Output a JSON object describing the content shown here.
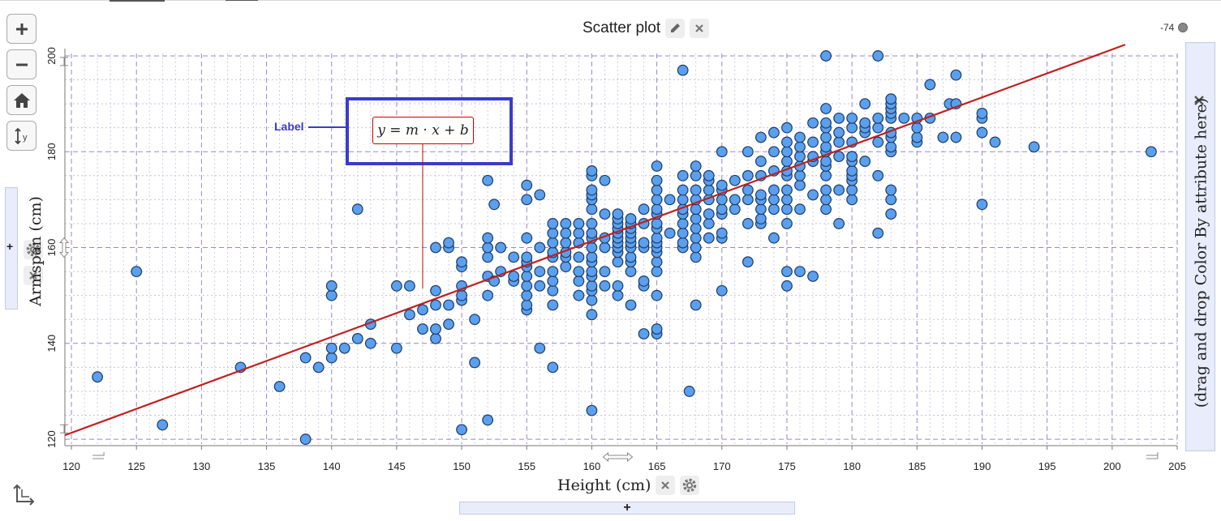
{
  "graph": {
    "title": "Scatter plot",
    "counter_label": "-74",
    "right_drop_hint": "(drag and drop Color By attribute here)",
    "left_plus": "+",
    "bottom_plus": "+",
    "annotation_label": "Label",
    "equation": "y = m · x + b",
    "colors": {
      "point_fill": "#5aa0ee",
      "point_stroke": "#1d3b66",
      "line": "#c0201e",
      "label_box": "#3b3bcc",
      "major_grid": "#9b86c8"
    },
    "icons": [
      "plus-icon",
      "minus-icon",
      "home-icon",
      "rescale-y-icon",
      "pencil-icon",
      "close-icon",
      "gear-icon",
      "axis-swap-icon"
    ]
  },
  "chart_data": {
    "type": "scatter",
    "title": "",
    "xlabel": "Height (cm)",
    "ylabel": "Armspan (cm)",
    "xlim": [
      119.5,
      205
    ],
    "ylim": [
      119,
      200.5
    ],
    "xticks": [
      120,
      125,
      130,
      135,
      140,
      145,
      150,
      155,
      160,
      165,
      170,
      175,
      180,
      185,
      190,
      195,
      200,
      205
    ],
    "yticks": [
      120,
      140,
      160,
      180,
      200
    ],
    "grid": true,
    "line": {
      "slope": 1.0,
      "intercept": 1.0,
      "label": "y = m · x + b"
    },
    "points": [
      [
        122,
        133
      ],
      [
        125,
        155
      ],
      [
        127,
        123
      ],
      [
        133,
        135
      ],
      [
        136,
        131
      ],
      [
        138,
        120
      ],
      [
        138,
        137
      ],
      [
        139,
        135
      ],
      [
        140,
        137
      ],
      [
        140,
        139
      ],
      [
        140,
        150
      ],
      [
        140,
        152
      ],
      [
        141,
        139
      ],
      [
        142,
        141
      ],
      [
        142,
        168
      ],
      [
        143,
        140
      ],
      [
        143,
        144
      ],
      [
        145,
        139
      ],
      [
        145,
        152
      ],
      [
        146,
        146
      ],
      [
        146,
        152
      ],
      [
        147,
        143
      ],
      [
        147,
        147
      ],
      [
        148,
        141
      ],
      [
        148,
        143
      ],
      [
        148,
        148
      ],
      [
        148,
        151
      ],
      [
        148,
        160
      ],
      [
        149,
        144
      ],
      [
        149,
        148
      ],
      [
        149,
        160
      ],
      [
        149,
        161
      ],
      [
        150,
        122
      ],
      [
        150,
        149
      ],
      [
        150,
        150
      ],
      [
        150,
        152
      ],
      [
        150,
        156
      ],
      [
        150,
        157
      ],
      [
        151,
        136
      ],
      [
        151,
        145
      ],
      [
        152,
        124
      ],
      [
        152,
        150
      ],
      [
        152,
        154
      ],
      [
        152,
        158
      ],
      [
        152,
        160
      ],
      [
        152,
        162
      ],
      [
        152,
        174
      ],
      [
        152.5,
        153
      ],
      [
        152.5,
        169
      ],
      [
        153,
        155
      ],
      [
        153,
        160
      ],
      [
        154,
        158
      ],
      [
        154,
        153
      ],
      [
        154,
        154
      ],
      [
        155,
        147
      ],
      [
        155,
        148
      ],
      [
        155,
        150
      ],
      [
        155,
        152
      ],
      [
        155,
        154
      ],
      [
        155,
        156
      ],
      [
        155,
        157
      ],
      [
        155,
        158
      ],
      [
        155,
        162
      ],
      [
        155,
        170
      ],
      [
        155,
        173
      ],
      [
        156,
        139
      ],
      [
        156,
        152
      ],
      [
        156,
        155
      ],
      [
        156,
        160
      ],
      [
        156,
        171
      ],
      [
        157,
        135
      ],
      [
        157,
        148
      ],
      [
        157,
        151
      ],
      [
        157,
        153
      ],
      [
        157,
        155
      ],
      [
        157,
        158
      ],
      [
        157,
        159
      ],
      [
        157,
        161
      ],
      [
        157,
        163
      ],
      [
        157,
        165
      ],
      [
        158,
        165
      ],
      [
        158,
        156
      ],
      [
        158,
        158
      ],
      [
        158,
        159
      ],
      [
        158,
        161
      ],
      [
        158,
        163
      ],
      [
        159,
        150
      ],
      [
        159,
        153
      ],
      [
        159,
        155
      ],
      [
        159,
        158
      ],
      [
        159,
        161
      ],
      [
        159,
        163
      ],
      [
        159,
        165
      ],
      [
        160,
        126
      ],
      [
        160,
        146
      ],
      [
        160,
        149
      ],
      [
        160,
        151
      ],
      [
        160,
        152
      ],
      [
        160,
        154
      ],
      [
        160,
        155
      ],
      [
        160,
        157
      ],
      [
        160,
        158
      ],
      [
        160,
        160
      ],
      [
        160,
        162
      ],
      [
        160,
        163
      ],
      [
        160,
        165
      ],
      [
        160,
        168
      ],
      [
        160,
        170
      ],
      [
        160,
        171
      ],
      [
        160,
        172
      ],
      [
        160,
        175
      ],
      [
        160,
        176
      ],
      [
        161,
        152
      ],
      [
        161,
        155
      ],
      [
        161,
        160
      ],
      [
        161,
        162
      ],
      [
        161,
        167
      ],
      [
        161,
        174
      ],
      [
        162,
        150
      ],
      [
        162,
        152
      ],
      [
        162,
        157
      ],
      [
        162,
        159
      ],
      [
        162,
        160
      ],
      [
        162,
        161
      ],
      [
        162,
        162
      ],
      [
        162,
        163
      ],
      [
        162,
        164
      ],
      [
        162,
        165
      ],
      [
        162,
        166
      ],
      [
        162,
        167
      ],
      [
        163,
        148
      ],
      [
        163,
        155
      ],
      [
        163,
        157
      ],
      [
        163,
        158
      ],
      [
        163,
        160
      ],
      [
        163,
        161
      ],
      [
        163,
        162
      ],
      [
        163,
        163
      ],
      [
        163,
        164
      ],
      [
        163,
        165
      ],
      [
        163,
        166
      ],
      [
        164,
        142
      ],
      [
        164,
        152
      ],
      [
        164,
        153
      ],
      [
        164,
        160
      ],
      [
        164,
        161
      ],
      [
        164,
        165
      ],
      [
        164,
        168
      ],
      [
        165,
        142
      ],
      [
        165,
        143
      ],
      [
        165,
        150
      ],
      [
        165,
        155
      ],
      [
        165,
        157
      ],
      [
        165,
        159
      ],
      [
        165,
        160
      ],
      [
        165,
        161
      ],
      [
        165,
        162
      ],
      [
        165,
        164
      ],
      [
        165,
        165
      ],
      [
        165,
        167
      ],
      [
        165,
        168
      ],
      [
        165,
        170
      ],
      [
        165,
        172
      ],
      [
        165,
        174
      ],
      [
        165,
        177
      ],
      [
        166,
        163
      ],
      [
        166,
        170
      ],
      [
        167,
        160
      ],
      [
        167,
        161
      ],
      [
        167,
        163
      ],
      [
        167,
        165
      ],
      [
        167,
        167
      ],
      [
        167,
        168
      ],
      [
        167,
        170
      ],
      [
        167,
        172
      ],
      [
        167,
        175
      ],
      [
        167,
        197
      ],
      [
        167.5,
        130
      ],
      [
        168,
        148
      ],
      [
        168,
        158
      ],
      [
        168,
        160
      ],
      [
        168,
        162
      ],
      [
        168,
        164
      ],
      [
        168,
        166
      ],
      [
        168,
        168
      ],
      [
        168,
        170
      ],
      [
        168,
        172
      ],
      [
        168,
        175
      ],
      [
        168,
        177
      ],
      [
        169,
        162
      ],
      [
        169,
        165
      ],
      [
        169,
        167
      ],
      [
        169,
        170
      ],
      [
        169,
        172
      ],
      [
        169,
        174
      ],
      [
        169,
        175
      ],
      [
        170,
        151
      ],
      [
        170,
        162
      ],
      [
        170,
        163
      ],
      [
        170,
        167
      ],
      [
        170,
        168
      ],
      [
        170,
        170
      ],
      [
        170,
        172
      ],
      [
        170,
        173
      ],
      [
        170,
        180
      ],
      [
        171,
        168
      ],
      [
        171,
        170
      ],
      [
        171,
        174
      ],
      [
        172,
        157
      ],
      [
        172,
        165
      ],
      [
        172,
        170
      ],
      [
        172,
        172
      ],
      [
        172,
        175
      ],
      [
        172,
        180
      ],
      [
        173,
        165
      ],
      [
        173,
        166
      ],
      [
        173,
        168
      ],
      [
        173,
        170
      ],
      [
        173,
        171
      ],
      [
        173,
        175
      ],
      [
        173,
        178
      ],
      [
        173,
        183
      ],
      [
        174,
        162
      ],
      [
        174,
        168
      ],
      [
        174,
        170
      ],
      [
        174,
        172
      ],
      [
        174,
        176
      ],
      [
        174,
        180
      ],
      [
        174,
        184
      ],
      [
        175,
        152
      ],
      [
        175,
        155
      ],
      [
        175,
        165
      ],
      [
        175,
        168
      ],
      [
        175,
        170
      ],
      [
        175,
        172
      ],
      [
        175,
        175
      ],
      [
        175,
        176
      ],
      [
        175,
        178
      ],
      [
        175,
        180
      ],
      [
        175,
        182
      ],
      [
        175,
        185
      ],
      [
        176,
        155
      ],
      [
        176,
        168
      ],
      [
        176,
        173
      ],
      [
        176,
        175
      ],
      [
        176,
        177
      ],
      [
        176,
        179
      ],
      [
        176,
        181
      ],
      [
        176,
        183
      ],
      [
        177,
        154
      ],
      [
        177,
        171
      ],
      [
        177,
        178
      ],
      [
        177,
        179
      ],
      [
        177,
        182
      ],
      [
        177,
        186
      ],
      [
        178,
        168
      ],
      [
        178,
        170
      ],
      [
        178,
        172
      ],
      [
        178,
        175
      ],
      [
        178,
        177
      ],
      [
        178,
        178
      ],
      [
        178,
        180
      ],
      [
        178,
        181
      ],
      [
        178,
        183
      ],
      [
        178,
        185
      ],
      [
        178,
        186
      ],
      [
        178,
        189
      ],
      [
        178,
        200
      ],
      [
        179,
        165
      ],
      [
        179,
        172
      ],
      [
        179,
        179
      ],
      [
        179,
        182
      ],
      [
        179,
        184
      ],
      [
        179,
        187
      ],
      [
        180,
        170
      ],
      [
        180,
        172
      ],
      [
        180,
        174
      ],
      [
        180,
        175
      ],
      [
        180,
        176
      ],
      [
        180,
        178
      ],
      [
        180,
        179
      ],
      [
        180,
        182
      ],
      [
        180,
        185
      ],
      [
        180,
        187
      ],
      [
        181,
        178
      ],
      [
        181,
        184
      ],
      [
        181,
        185
      ],
      [
        181,
        186
      ],
      [
        181,
        190
      ],
      [
        182,
        163
      ],
      [
        182,
        175
      ],
      [
        182,
        182
      ],
      [
        182,
        185
      ],
      [
        182,
        187
      ],
      [
        182,
        200
      ],
      [
        183,
        167
      ],
      [
        183,
        170
      ],
      [
        183,
        172
      ],
      [
        183,
        180
      ],
      [
        183,
        181
      ],
      [
        183,
        183
      ],
      [
        183,
        184
      ],
      [
        183,
        187
      ],
      [
        183,
        188
      ],
      [
        183,
        189
      ],
      [
        183,
        190
      ],
      [
        183,
        191
      ],
      [
        184,
        187
      ],
      [
        185,
        182
      ],
      [
        185,
        183
      ],
      [
        185,
        185
      ],
      [
        185,
        187
      ],
      [
        186,
        187
      ],
      [
        186,
        194
      ],
      [
        187,
        183
      ],
      [
        187.5,
        190
      ],
      [
        188,
        183
      ],
      [
        188,
        190
      ],
      [
        188,
        196
      ],
      [
        190,
        169
      ],
      [
        190,
        184
      ],
      [
        190,
        187
      ],
      [
        190,
        188
      ],
      [
        191,
        182
      ],
      [
        194,
        181
      ],
      [
        203,
        180
      ]
    ]
  }
}
